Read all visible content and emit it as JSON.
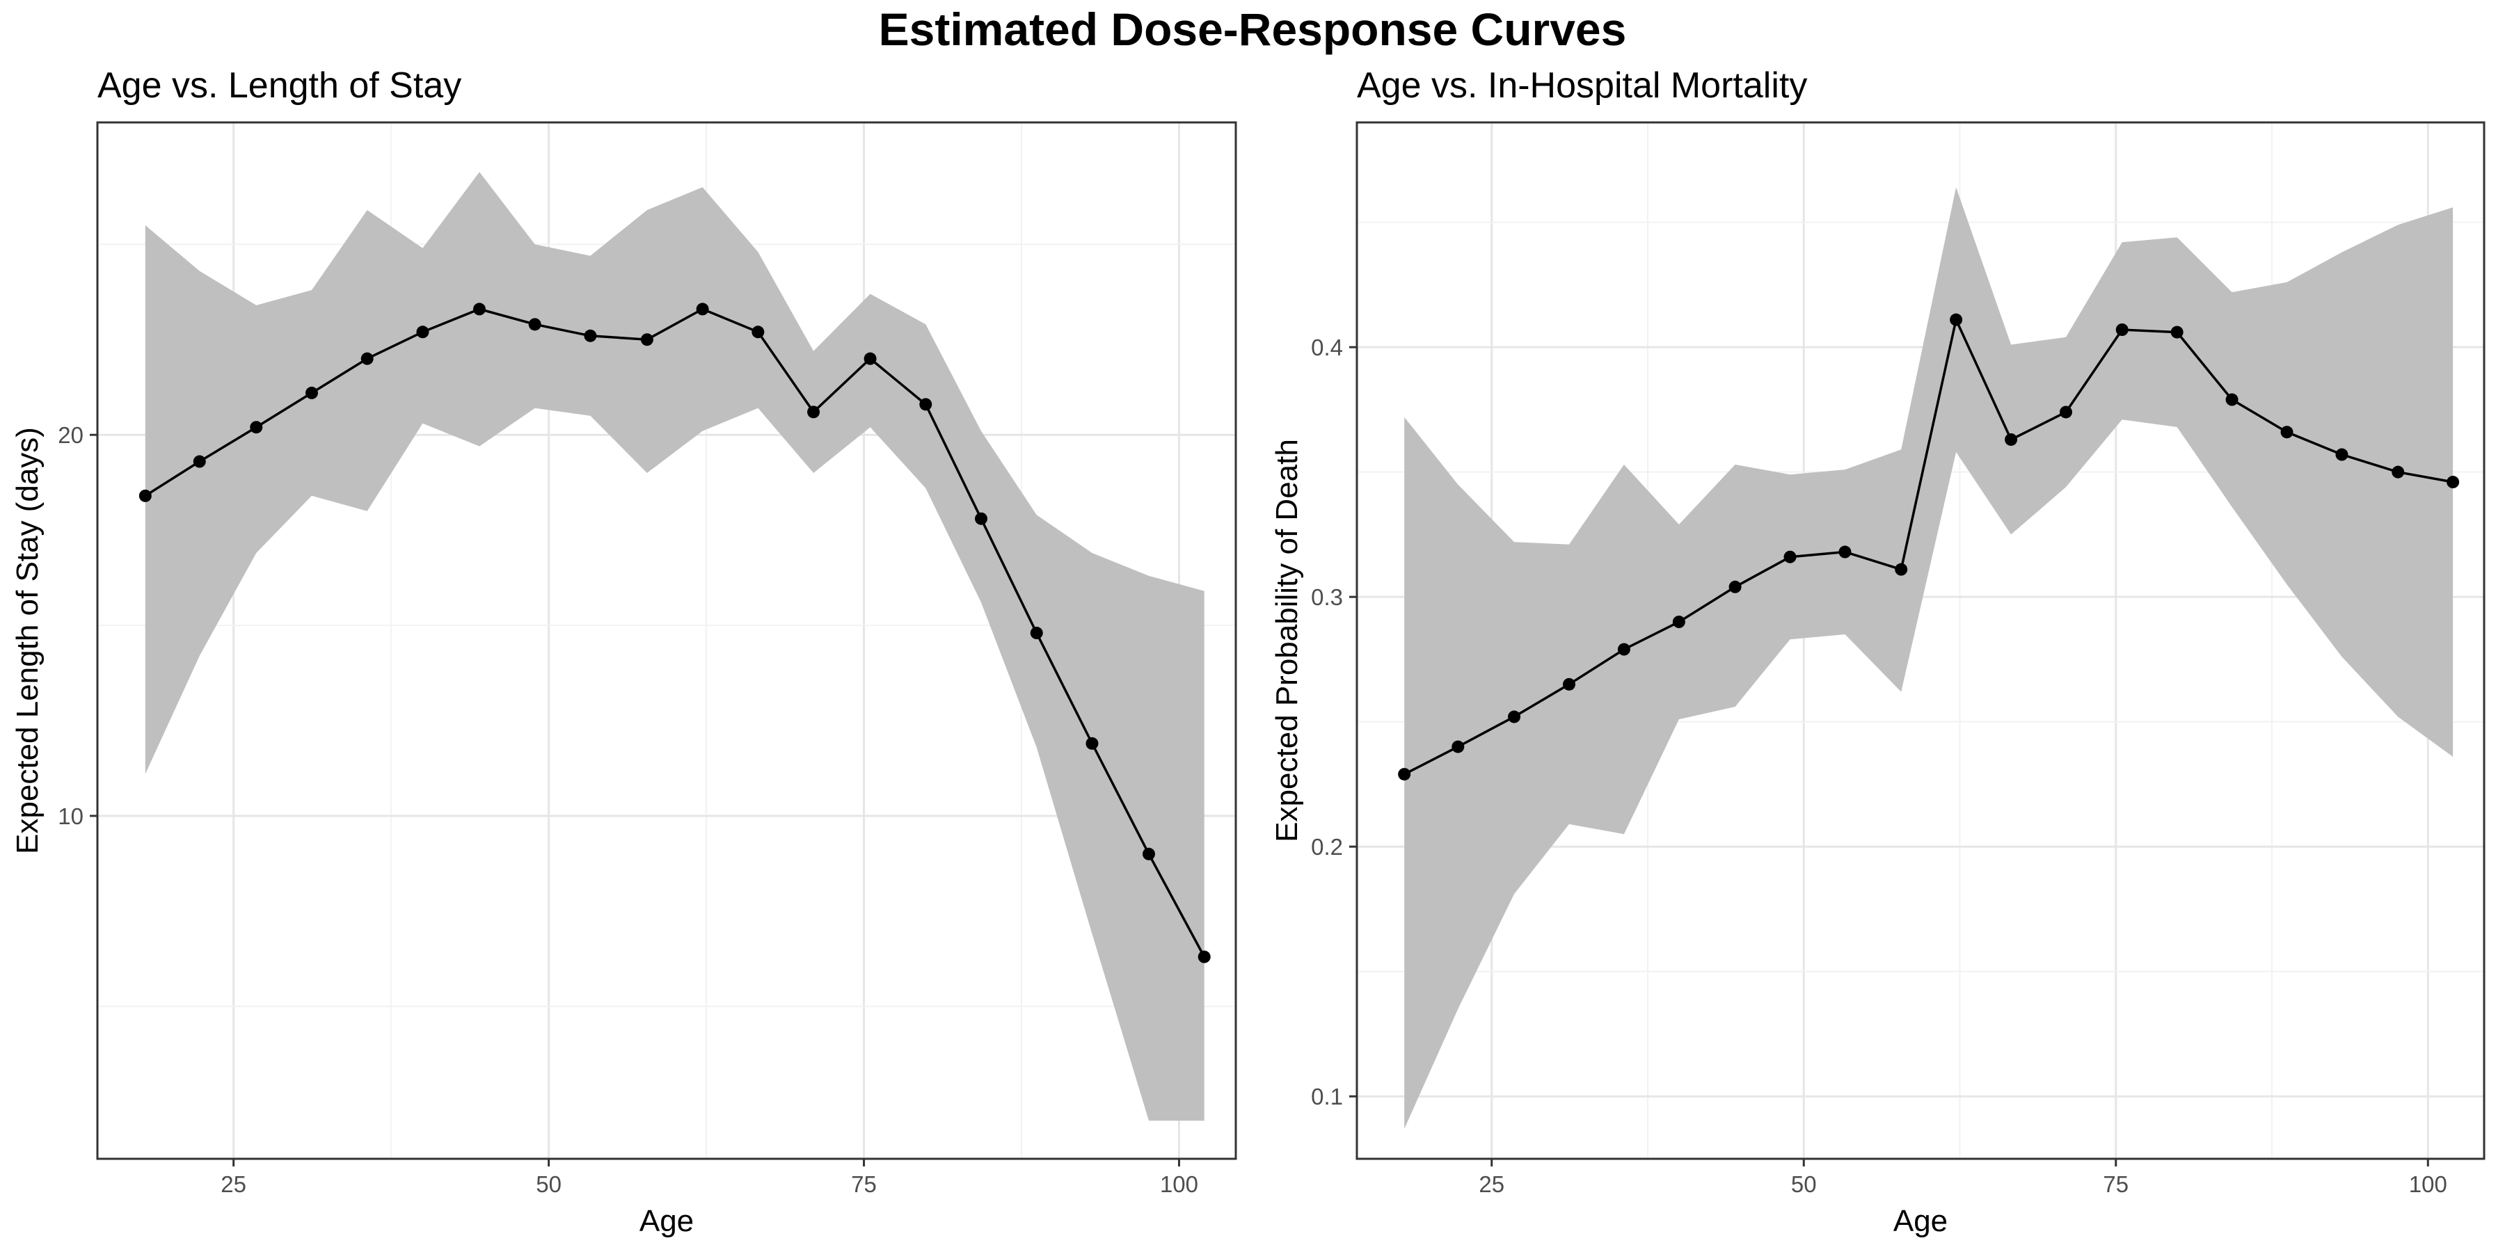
{
  "page": {
    "title": "Estimated Dose-Response Curves"
  },
  "chart_data": [
    {
      "type": "line",
      "title": "Age vs. Length of Stay",
      "xlabel": "Age",
      "ylabel": "Expected Length of Stay (days)",
      "xlim": [
        14.2,
        104.5
      ],
      "ylim": [
        1.0,
        28.2
      ],
      "xticks": [
        25,
        50,
        75,
        100
      ],
      "yticks": [
        10,
        20
      ],
      "grid": true,
      "ribbon": "95% interval band (grey)",
      "x": [
        18.0,
        22.3,
        26.8,
        31.2,
        35.6,
        40.0,
        44.5,
        48.9,
        53.3,
        57.8,
        62.2,
        66.6,
        71.0,
        75.5,
        79.9,
        84.3,
        88.7,
        93.1,
        97.6,
        102.0
      ],
      "y": [
        18.4,
        19.3,
        20.2,
        21.1,
        22.0,
        22.7,
        23.3,
        22.9,
        22.6,
        22.5,
        23.3,
        22.7,
        20.6,
        22.0,
        20.8,
        17.8,
        14.8,
        11.9,
        9.0,
        6.3
      ],
      "lower": [
        11.1,
        14.2,
        16.9,
        18.4,
        18.0,
        20.3,
        19.7,
        20.7,
        20.5,
        19.0,
        20.1,
        20.7,
        19.0,
        20.2,
        18.6,
        15.6,
        11.8,
        6.9,
        2.0,
        2.0
      ],
      "upper": [
        25.5,
        24.3,
        23.4,
        23.8,
        25.9,
        24.9,
        26.9,
        25.0,
        24.7,
        25.9,
        26.5,
        24.8,
        22.2,
        23.7,
        22.9,
        20.1,
        17.9,
        16.9,
        16.3,
        15.9
      ]
    },
    {
      "type": "line",
      "title": "Age vs. In-Hospital Mortality",
      "xlabel": "Age",
      "ylabel": "Expected Probability of Death",
      "xlim": [
        14.2,
        104.5
      ],
      "ylim": [
        0.075,
        0.49
      ],
      "xticks": [
        25,
        50,
        75,
        100
      ],
      "yticks": [
        0.1,
        0.2,
        0.3,
        0.4
      ],
      "grid": true,
      "ribbon": "95% interval band (grey)",
      "x": [
        18.0,
        22.3,
        26.8,
        31.2,
        35.6,
        40.0,
        44.5,
        48.9,
        53.3,
        57.8,
        62.2,
        66.6,
        71.0,
        75.5,
        79.9,
        84.3,
        88.7,
        93.1,
        97.6,
        102.0
      ],
      "y": [
        0.229,
        0.24,
        0.252,
        0.265,
        0.279,
        0.29,
        0.304,
        0.316,
        0.318,
        0.311,
        0.411,
        0.363,
        0.374,
        0.407,
        0.406,
        0.379,
        0.366,
        0.357,
        0.35,
        0.346
      ],
      "lower": [
        0.087,
        0.135,
        0.181,
        0.209,
        0.205,
        0.251,
        0.256,
        0.283,
        0.285,
        0.262,
        0.358,
        0.325,
        0.344,
        0.371,
        0.368,
        0.336,
        0.305,
        0.276,
        0.252,
        0.236
      ],
      "upper": [
        0.372,
        0.345,
        0.322,
        0.321,
        0.353,
        0.329,
        0.353,
        0.349,
        0.351,
        0.359,
        0.464,
        0.401,
        0.404,
        0.442,
        0.444,
        0.422,
        0.426,
        0.438,
        0.449,
        0.456
      ]
    }
  ]
}
